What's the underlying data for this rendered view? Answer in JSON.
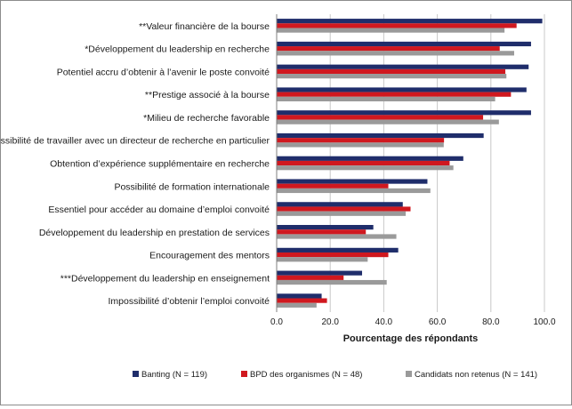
{
  "chart_data": {
    "type": "bar",
    "orientation": "horizontal",
    "categories": [
      "**Valeur financière de la bourse",
      "*Développement du leadership en recherche",
      "Potentiel accru d’obtenir à l’avenir le poste convoité",
      "**Prestige associé à la bourse",
      "*Milieu de recherche favorable",
      "*Possibilité de travailler avec un directeur de recherche en particulier",
      "Obtention d’expérience supplémentaire en recherche",
      "Possibilité de formation internationale",
      "Essentiel pour accéder au domaine d’emploi convoité",
      "Développement du leadership en prestation de services",
      "Encouragement des mentors",
      "***Développement du leadership en enseignement",
      "Impossibilité d’obtenir l’emploi convoité"
    ],
    "series": [
      {
        "name": "Banting (N = 119)",
        "color": "#1f2d6b",
        "values": [
          99.2,
          95.0,
          94.1,
          93.3,
          95.0,
          77.3,
          69.7,
          56.3,
          47.1,
          36.1,
          45.4,
          31.9,
          16.8
        ]
      },
      {
        "name": "BPD des organismes (N = 48)",
        "color": "#d0181f",
        "values": [
          89.6,
          83.3,
          85.4,
          87.5,
          77.1,
          62.5,
          64.6,
          41.7,
          50.0,
          33.3,
          41.7,
          25.0,
          18.8
        ]
      },
      {
        "name": "Candidats non retenus (N = 141)",
        "color": "#9a9a9a",
        "values": [
          85.1,
          88.7,
          85.8,
          81.6,
          83.0,
          62.4,
          66.0,
          57.4,
          48.2,
          44.7,
          34.0,
          41.1,
          14.9
        ]
      }
    ],
    "xlabel": "Pourcentage des répondants",
    "xlim": [
      0,
      100
    ],
    "xticks": [
      "0.0",
      "20.0",
      "40.0",
      "60.0",
      "80.0",
      "100.0"
    ],
    "grid": true,
    "legend": "bottom"
  }
}
